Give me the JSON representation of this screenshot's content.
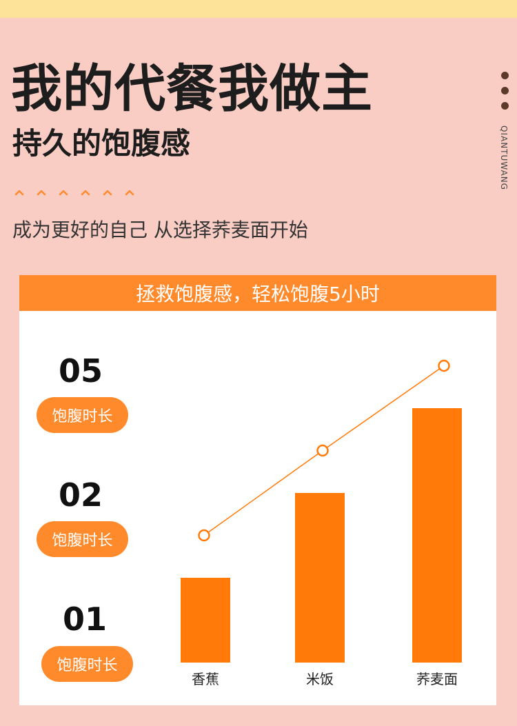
{
  "header": {
    "title": "我的代餐我做主",
    "subtitle": "持久的饱腹感",
    "tagline": "成为更好的自己 从选择荞麦面开始",
    "side_text": "QIANTUWANG"
  },
  "card": {
    "banner": "拯救饱腹感，轻松饱腹5小时"
  },
  "levels": [
    {
      "number": "05",
      "label": "饱腹时长"
    },
    {
      "number": "02",
      "label": "饱腹时长"
    },
    {
      "number": "01",
      "label": "饱腹时长"
    }
  ],
  "colors": {
    "background": "#f9cdc4",
    "top_strip": "#fde39a",
    "accent": "#ff8a2b",
    "bar": "#ff7a08",
    "text_dark": "#1d1d1d"
  },
  "chart_data": {
    "type": "bar",
    "categories": [
      "香蕉",
      "米饭",
      "荞麦面"
    ],
    "values": [
      1,
      2,
      3
    ],
    "line_values": [
      1.5,
      2.5,
      3.5
    ],
    "ylim": [
      0,
      4
    ],
    "grid": false,
    "title": "",
    "xlabel": "",
    "ylabel": ""
  }
}
